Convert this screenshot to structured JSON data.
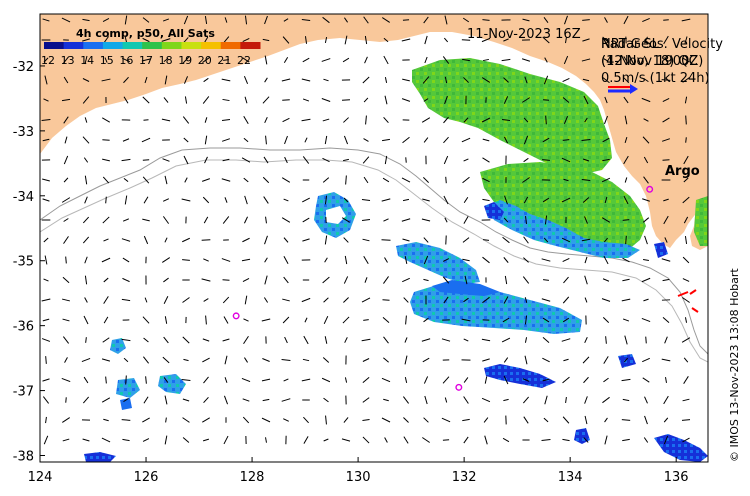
{
  "map": {
    "date_label": "11-Nov-2023 16Z",
    "velocity_title": "NRT Geos. Velocity",
    "velocity_source": "(4-Nov, 18) QC",
    "overlay_title": "Radar SL",
    "overlay_time": "(12 Nov 1900Z)",
    "scale_label": "0.5m/s (1kt 24h)",
    "argo_label": "Argo",
    "credit": "© IMOS 13-Nov-2023 13:08 Hobart",
    "colors": {
      "land": "#f9c89b",
      "ocean": "#ffffff",
      "bathymetry": "#999999",
      "argo_marker": "#e000e0",
      "scale_arrow_blue": "#1d2bff",
      "scale_arrow_red": "#ff0000"
    }
  },
  "colorbar": {
    "title": "4h comp, p50, All Sats",
    "ticks": [
      "12",
      "13",
      "14",
      "15",
      "16",
      "17",
      "18",
      "19",
      "20",
      "21",
      "22"
    ],
    "colors": [
      "#0a0f8c",
      "#1530d8",
      "#1a6ef0",
      "#12a8e8",
      "#10c8b0",
      "#2ec24a",
      "#7fd61a",
      "#c8e010",
      "#f5c000",
      "#f06a00",
      "#c41a0a"
    ]
  },
  "axes": {
    "x_ticks": [
      "124",
      "126",
      "128",
      "130",
      "132",
      "134",
      "136"
    ],
    "y_ticks": [
      "-32",
      "-33",
      "-34",
      "-35",
      "-36",
      "-37",
      "-38"
    ],
    "lon_range": [
      124,
      136.6
    ],
    "lat_range": [
      -38.1,
      -31.2
    ]
  },
  "argo_floats": [
    {
      "lon": 135.5,
      "lat": -33.9
    },
    {
      "lon": 127.7,
      "lat": -35.85
    },
    {
      "lon": 131.9,
      "lat": -36.95
    }
  ]
}
